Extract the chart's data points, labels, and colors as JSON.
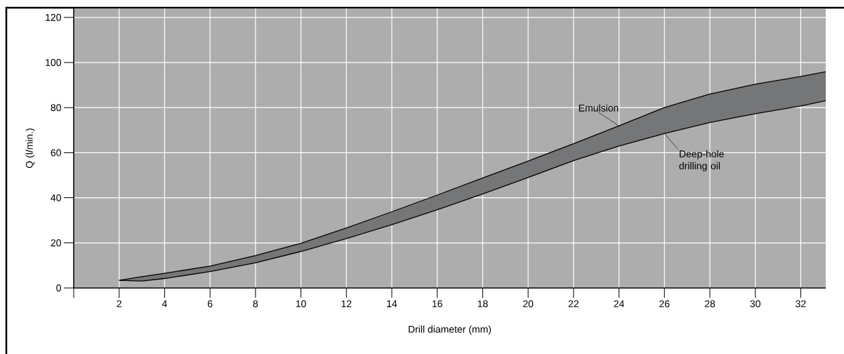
{
  "chart_data": {
    "type": "area",
    "xlabel": "Drill diameter (mm)",
    "ylabel": "Q (l/min.)",
    "x": [
      2,
      3,
      4,
      6,
      8,
      10,
      12,
      14,
      16,
      18,
      20,
      22,
      24,
      26,
      28,
      30,
      32,
      33.1
    ],
    "series": [
      {
        "name": "Deep-hole drilling oil",
        "type": "line",
        "color": "#000000",
        "values": [
          3.4,
          3.1,
          4.2,
          7.3,
          11.2,
          16.2,
          21.9,
          28.1,
          34.7,
          41.7,
          49,
          56.5,
          63,
          68.5,
          73.4,
          77.3,
          80.7,
          83.1
        ]
      },
      {
        "name": "Emulsion",
        "color": "#757678",
        "values": [
          3.4,
          5,
          6.5,
          9.7,
          14.4,
          19.8,
          26.6,
          33.8,
          41.2,
          48.8,
          56.3,
          64,
          71.9,
          80,
          86,
          90.4,
          93.8,
          95.9
        ]
      }
    ],
    "xlim": [
      0,
      33.1
    ],
    "ylim": [
      0,
      124
    ],
    "xticks": [
      {
        "value": 0,
        "label": null
      },
      2,
      4,
      6,
      8,
      10,
      12,
      14,
      16,
      18,
      20,
      22,
      24,
      26,
      28,
      30,
      32
    ],
    "yticks": [
      0,
      20,
      40,
      60,
      80,
      100,
      120
    ],
    "grid": true
  }
}
